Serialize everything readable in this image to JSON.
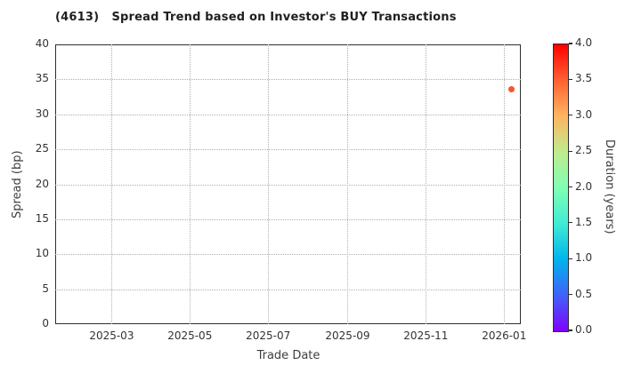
{
  "chart_data": {
    "type": "scatter",
    "title": "(4613)   Spread Trend based on Investor's BUY Transactions",
    "xlabel": "Trade Date",
    "ylabel": "Spread (bp)",
    "x_range": [
      "2025-01-16",
      "2026-01-14"
    ],
    "ylim": [
      0,
      40
    ],
    "y_ticks": [
      0,
      5,
      10,
      15,
      20,
      25,
      30,
      35,
      40
    ],
    "x_ticks": [
      {
        "label": "2025-03",
        "date": "2025-03-01"
      },
      {
        "label": "2025-05",
        "date": "2025-05-01"
      },
      {
        "label": "2025-07",
        "date": "2025-07-01"
      },
      {
        "label": "2025-09",
        "date": "2025-09-01"
      },
      {
        "label": "2025-11",
        "date": "2025-11-01"
      },
      {
        "label": "2026-01",
        "date": "2026-01-01"
      }
    ],
    "grid": "dotted",
    "points": [
      {
        "date": "2026-01-07",
        "spread_bp": 33.6,
        "duration_years": 3.5,
        "color": "#f65532"
      }
    ],
    "colorbar": {
      "label": "Duration (years)",
      "min": 0.0,
      "max": 4.0,
      "ticks": [
        "0.0",
        "0.5",
        "1.0",
        "1.5",
        "2.0",
        "2.5",
        "3.0",
        "3.5",
        "4.0"
      ],
      "colormap": "rainbow",
      "gradient": [
        [
          0.0,
          "#8000ff"
        ],
        [
          0.125,
          "#4062fa"
        ],
        [
          0.25,
          "#00b4ec"
        ],
        [
          0.375,
          "#40ecd4"
        ],
        [
          0.5,
          "#80ffb4"
        ],
        [
          0.625,
          "#bfec8e"
        ],
        [
          0.75,
          "#ffb461"
        ],
        [
          0.875,
          "#ff6232"
        ],
        [
          1.0,
          "#ff0000"
        ]
      ]
    },
    "colors": {
      "grid": "#b0b0b0",
      "spine": "#2e2e2e",
      "tick_text": "#333333",
      "label_text": "#3d3d3d",
      "title_text": "#1f1f1f",
      "background": "#ffffff"
    }
  }
}
